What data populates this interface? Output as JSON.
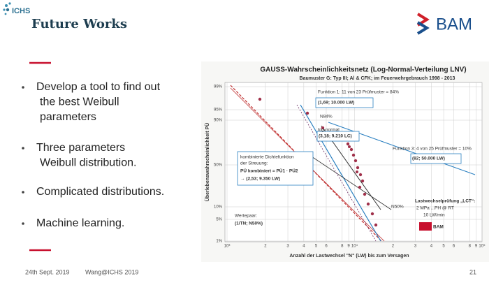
{
  "header": {
    "logo": "ICHS",
    "title": "Future Works",
    "brand": "BAM"
  },
  "bullets": [
    [
      "Develop a tool to find out",
      "the best Weibull",
      "parameters"
    ],
    [
      "Three parameters",
      "Weibull distribution."
    ],
    [
      "Complicated distributions."
    ],
    [
      "Machine learning."
    ]
  ],
  "figure": {
    "title": "GAUSS-Wahrscheinlichkeitsnetz (Log-Normal-Verteilung LNV)",
    "subtitle": "Baumuster G: Typ III; Al & CFK; im Feuerwehrgebrauch 1998 - 2013",
    "y_label": "Überlebenswahrscheinlichkeit PÜ",
    "x_label": "Anzahl der Lastwechsel \"N\" (LW) bis zum Versagen",
    "y_ticks": [
      "99%",
      "95%",
      "90%",
      "50%",
      "10%",
      "5%",
      "1%"
    ],
    "x_ticks": [
      "10³",
      "2",
      "3",
      "4",
      "5",
      "6",
      "8",
      "9",
      "10⁴",
      "2",
      "3",
      "4",
      "5",
      "6",
      "8",
      "9",
      "10⁵"
    ],
    "annotations": [
      "Funktion 1: 11 von 23 Prüfmuster = 84%",
      "(1,69; 10.000 LW)",
      "N84%",
      "log-normal",
      "(3,18; 9.210 LC)",
      "kombinierte Dichtefunktion",
      "der Streuung:",
      "PÜ kombiniert = PÜ1 · PÜ2",
      "→ (2,53; 9.350 LW)",
      "Funktion 3: 4 von 25 Prüfmuster = 10%",
      "(82; 50.000 LW)",
      "Lastwechselprüfung „LCT“:",
      "2 MPa ...PH @ RT",
      "10 LW/min",
      "Wertepaar:",
      "(1/TN; N50%)",
      "N50%",
      "BAM"
    ]
  },
  "footer": {
    "date": "24th Sept. 2019",
    "author": "Wang@ICHS 2019",
    "page": "21"
  }
}
